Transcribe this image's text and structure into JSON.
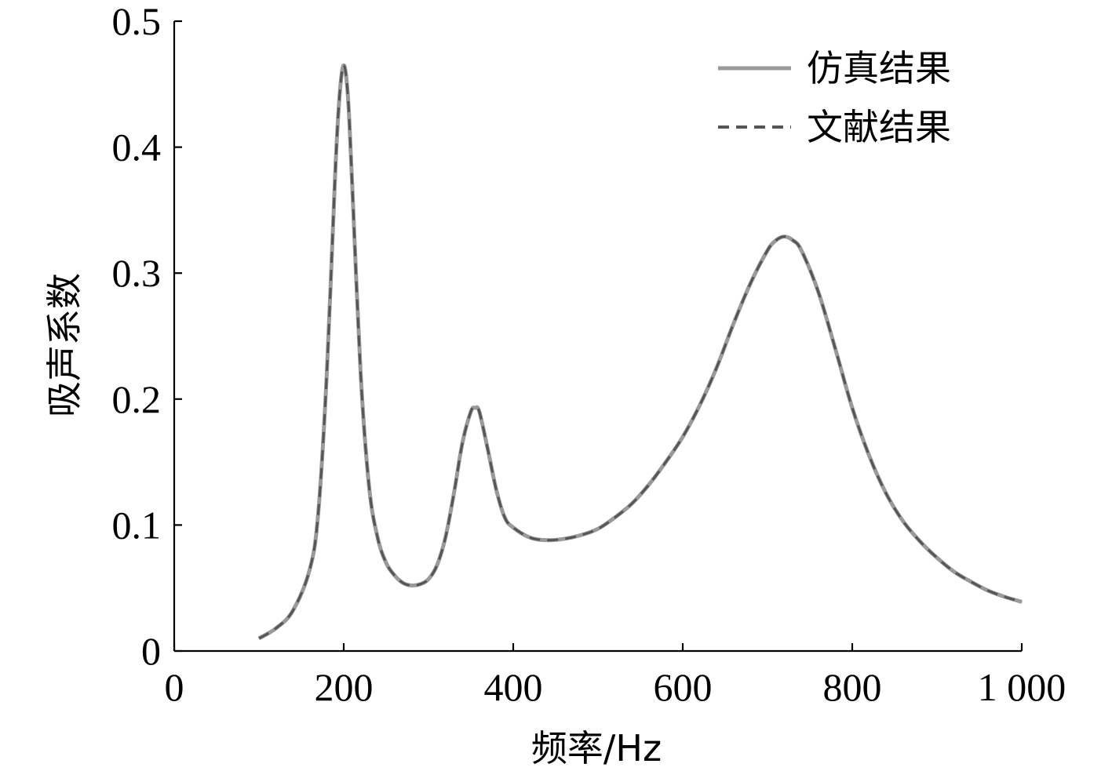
{
  "chart_data": {
    "type": "line",
    "xlabel": "频率/Hz",
    "ylabel": "吸声系数",
    "xlim": [
      0,
      1000
    ],
    "ylim": [
      0,
      0.5
    ],
    "x_ticks": [
      0,
      200,
      400,
      600,
      800,
      1000
    ],
    "x_tick_labels": [
      "0",
      "200",
      "400",
      "600",
      "800",
      "1 000"
    ],
    "y_ticks": [
      0,
      0.1,
      0.2,
      0.3,
      0.4,
      0.5
    ],
    "y_tick_labels": [
      "0",
      "0.1",
      "0.2",
      "0.3",
      "0.4",
      "0.5"
    ],
    "grid": false,
    "legend": "top-right",
    "series": [
      {
        "name": "仿真结果",
        "style": "solid",
        "color": "#9a9a9a",
        "x": [
          100,
          120,
          140,
          160,
          170,
          180,
          190,
          195,
          200,
          205,
          210,
          220,
          230,
          240,
          250,
          260,
          270,
          280,
          290,
          300,
          310,
          320,
          330,
          340,
          350,
          355,
          360,
          370,
          380,
          390,
          400,
          420,
          440,
          460,
          480,
          500,
          520,
          540,
          560,
          580,
          600,
          620,
          640,
          660,
          680,
          700,
          710,
          720,
          730,
          740,
          760,
          780,
          800,
          820,
          840,
          860,
          880,
          900,
          920,
          940,
          960,
          980,
          1000
        ],
        "y": [
          0.01,
          0.018,
          0.032,
          0.065,
          0.11,
          0.22,
          0.38,
          0.44,
          0.465,
          0.44,
          0.37,
          0.22,
          0.13,
          0.09,
          0.07,
          0.06,
          0.054,
          0.052,
          0.053,
          0.057,
          0.068,
          0.09,
          0.125,
          0.165,
          0.19,
          0.193,
          0.19,
          0.16,
          0.128,
          0.106,
          0.098,
          0.09,
          0.088,
          0.089,
          0.092,
          0.097,
          0.106,
          0.117,
          0.132,
          0.15,
          0.17,
          0.195,
          0.225,
          0.26,
          0.292,
          0.318,
          0.326,
          0.329,
          0.326,
          0.318,
          0.285,
          0.24,
          0.193,
          0.155,
          0.125,
          0.103,
          0.087,
          0.074,
          0.063,
          0.055,
          0.048,
          0.043,
          0.039
        ]
      },
      {
        "name": "文献结果",
        "style": "dashed",
        "color": "#555555",
        "x": [
          100,
          120,
          140,
          160,
          170,
          180,
          190,
          195,
          200,
          205,
          210,
          220,
          230,
          240,
          250,
          260,
          270,
          280,
          290,
          300,
          310,
          320,
          330,
          340,
          350,
          355,
          360,
          370,
          380,
          390,
          400,
          420,
          440,
          460,
          480,
          500,
          520,
          540,
          560,
          580,
          600,
          620,
          640,
          660,
          680,
          700,
          710,
          720,
          730,
          740,
          760,
          780,
          800,
          820,
          840,
          860,
          880,
          900,
          920,
          940,
          960,
          980,
          1000
        ],
        "y": [
          0.01,
          0.018,
          0.032,
          0.065,
          0.11,
          0.22,
          0.38,
          0.44,
          0.465,
          0.44,
          0.37,
          0.22,
          0.13,
          0.09,
          0.07,
          0.06,
          0.054,
          0.052,
          0.053,
          0.057,
          0.068,
          0.09,
          0.125,
          0.165,
          0.19,
          0.193,
          0.19,
          0.16,
          0.128,
          0.106,
          0.098,
          0.09,
          0.088,
          0.089,
          0.092,
          0.097,
          0.106,
          0.117,
          0.132,
          0.15,
          0.17,
          0.195,
          0.225,
          0.26,
          0.292,
          0.318,
          0.326,
          0.329,
          0.326,
          0.318,
          0.285,
          0.24,
          0.193,
          0.155,
          0.125,
          0.103,
          0.087,
          0.074,
          0.063,
          0.055,
          0.048,
          0.043,
          0.039
        ]
      }
    ]
  }
}
